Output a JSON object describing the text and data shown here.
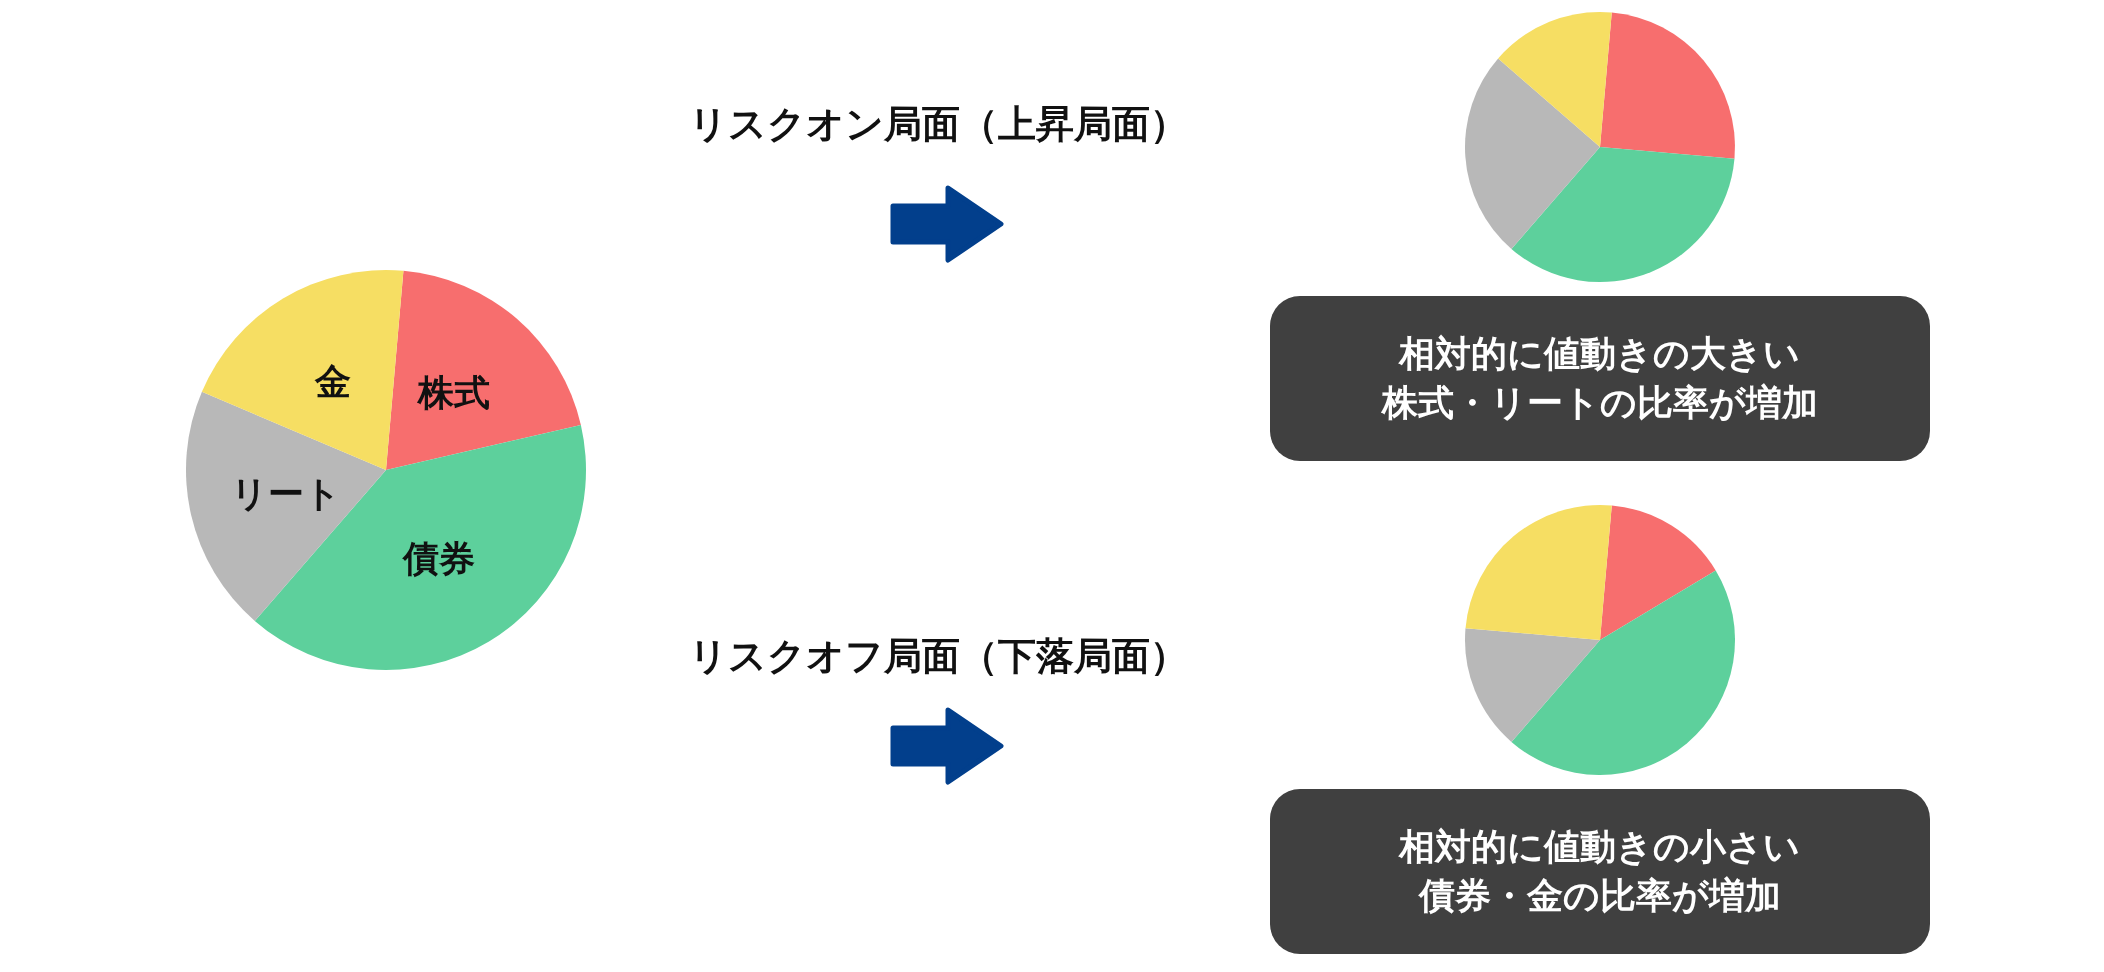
{
  "chart_data": [
    {
      "type": "pie",
      "categories": [
        "株式",
        "債券",
        "リート",
        "金"
      ],
      "values": [
        20,
        40,
        20,
        20
      ],
      "colors": [
        "#f76e6e",
        "#5dd09c",
        "#b8b8b8",
        "#f6de63"
      ]
    },
    {
      "type": "pie",
      "title": "リスクオン局面（上昇局面）",
      "categories": [
        null,
        null,
        null,
        null
      ],
      "values": [
        25,
        35,
        25,
        15
      ],
      "colors": [
        "#f76e6e",
        "#5dd09c",
        "#b8b8b8",
        "#f6de63"
      ],
      "annotations": [
        "相対的に値動きの大きい株式・リートの比率が増加"
      ]
    },
    {
      "type": "pie",
      "title": "リスクオフ局面（下落局面）",
      "categories": [
        null,
        null,
        null,
        null
      ],
      "values": [
        15,
        45,
        15,
        25
      ],
      "colors": [
        "#f76e6e",
        "#5dd09c",
        "#b8b8b8",
        "#f6de63"
      ],
      "annotations": [
        "相対的に値動きの小さい債券・金の比率が増加"
      ]
    }
  ]
}
